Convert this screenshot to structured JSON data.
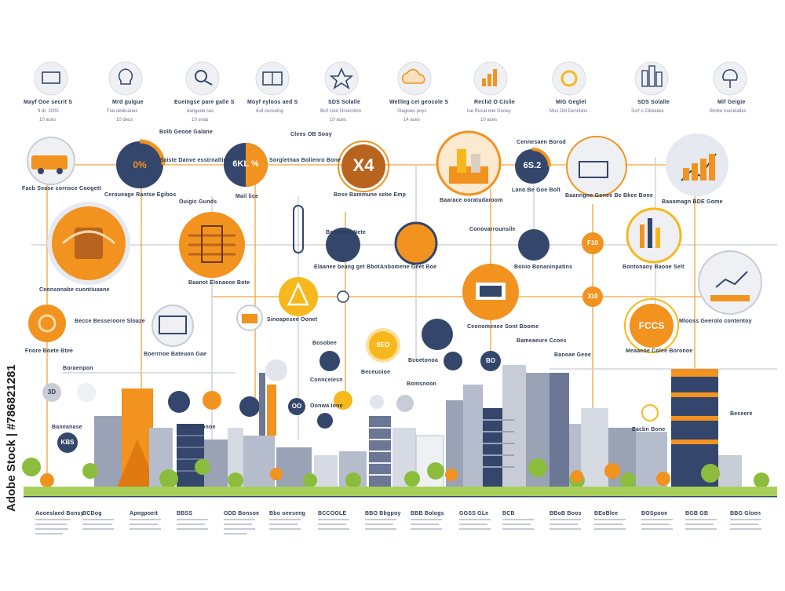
{
  "top_icons": [
    {
      "icon": "monitor-icon",
      "line1": "Mayf Ooe secrit S",
      "line2": "9 dr. 2005",
      "line3": "10 aces"
    },
    {
      "icon": "lightbulb-icon",
      "line1": "Mrd guigue",
      "line2": "Fue dedicaries",
      "line3": "10 deus"
    },
    {
      "icon": "satellite-icon",
      "line1": "Eueingse pare galle S",
      "line2": "dangede cas",
      "line3": "10 snap"
    },
    {
      "icon": "book-icon",
      "line1": "Moyf eyloos aed S",
      "line2": "dull consoing",
      "line3": ""
    },
    {
      "icon": "star-icon",
      "line1": "SDS Solalle",
      "line2": "Bisf coot Onuirction",
      "line3": "10 aces"
    },
    {
      "icon": "cloud-icon",
      "line1": "Wellleg cel geocole S",
      "line2": "Slagioes poys",
      "line3": "14 aces"
    },
    {
      "icon": "bar-chart-icon",
      "line1": "Reclid O Cislie",
      "line2": "lue Rucal mel Gooey",
      "line3": "10 aces"
    },
    {
      "icon": "sun-icon",
      "line1": "MIG Geglel",
      "line2": "Mus Dbl Dennilios",
      "line3": ""
    },
    {
      "icon": "building-icon",
      "line1": "SDS Solalle",
      "line2": "Ssrf o Cibkeiles",
      "line3": ""
    },
    {
      "icon": "tree-icon",
      "line1": "Mif Geigie",
      "line2": "Bnilve manelalles",
      "line3": ""
    }
  ],
  "nodes": {
    "n1_value": "0%",
    "n2_value": "6KL %",
    "n3_value": "X4",
    "n4_value": "6S.2",
    "n5_value": "FCCS",
    "n6_value": "F10",
    "n7_value": "310",
    "n8_value": "SEO",
    "n9_value": "KBS",
    "n10_value": "OO",
    "n11_value": "BO",
    "n12_value": "3D"
  },
  "labels": {
    "a1": "Facb Sease cornsce Coogett",
    "a2": "Baiste Danve esstrnaltiron",
    "a3": "Sorgletnao Bolienro Bone",
    "a4": "Clees OB Sooy",
    "a5": "Bose Bammune sebe Emp",
    "a6": "Baarace ooratudaroom",
    "a7": "Lano Be Goe Bolt",
    "a8": "Cennesaen Borod",
    "a9": "Baaomagn BDE Gome",
    "a10": "Ceroueage Rantse Egibos",
    "a11": "Ouigic Gunds",
    "a12": "Mail lice",
    "a13": "Bolb Geooe Galane",
    "a14": "Elaanee beang get Bbot",
    "a15": "Anbomene Geet Boe",
    "a16": "Conovarrounsile",
    "a17": "Bonio Bonaninpatins",
    "a18": "Baanngne Gonee Be Bkee Bone",
    "a19": "Bontonaoy Baooe Selt",
    "a20": "Baanot Elonaeoe Bote",
    "a21": "Bnemeen Nete",
    "a22": "Ceonsonabe cuontiuaane",
    "a23": "Becce Besseroore Sloaze",
    "a24": "Fnore Boete Btee",
    "a25": "Boerrnoe Bateuon Gae",
    "a26": "Sinoapesee Oonet",
    "a27": "Mlooss Geerolo contentoy",
    "a28": "Meaaeoe Colee Boronoe",
    "a29": "Ceonomenee Sont Boome",
    "a30": "Bameaeure Ccoes",
    "a31": "Boraenpon",
    "a32": "Connceiesn",
    "a33": "Beceuoioe",
    "a34": "Bcoetonoa",
    "a35": "Bosobee",
    "a36": "Banoae Geoe",
    "a37": "Bomsnoon",
    "a38": "Sonot conoe",
    "a39": "Oonwa Ione",
    "a40": "Eacbn Bone",
    "a41": "Beceere",
    "a42": "Baneanase"
  },
  "bottom_captions": [
    "Aooeslaed Bonsy",
    "BCDog",
    "Apegpoeit",
    "BBSS",
    "GDD Bonsoe",
    "Bbo oeeseng",
    "BCCOOLE",
    "BBO Bbgpoy",
    "BBB Bologs",
    "GGSS GLe",
    "BCB",
    "BBoB Boos",
    "BEoBlee",
    "BOSpooe",
    "BGB GB",
    "BBG Gloen"
  ],
  "watermark": "Adobe Stock | #786821281",
  "colors": {
    "orange": "#f2921f",
    "navy": "#34466b",
    "gray": "#c8ccd6",
    "light": "#eef0f4",
    "gold": "#f6b81c"
  }
}
